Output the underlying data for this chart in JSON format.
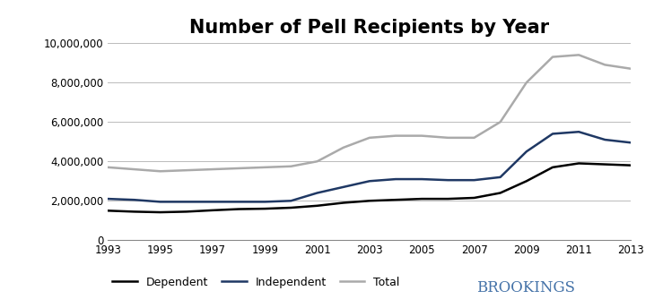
{
  "title": "Number of Pell Recipients by Year",
  "years": [
    1993,
    1994,
    1995,
    1996,
    1997,
    1998,
    1999,
    2000,
    2001,
    2002,
    2003,
    2004,
    2005,
    2006,
    2007,
    2008,
    2009,
    2010,
    2011,
    2012,
    2013
  ],
  "dependent": [
    1500000,
    1450000,
    1420000,
    1450000,
    1520000,
    1580000,
    1600000,
    1650000,
    1750000,
    1900000,
    2000000,
    2050000,
    2100000,
    2100000,
    2150000,
    2400000,
    3000000,
    3700000,
    3900000,
    3850000,
    3800000
  ],
  "independent": [
    2100000,
    2050000,
    1950000,
    1950000,
    1950000,
    1950000,
    1950000,
    2000000,
    2400000,
    2700000,
    3000000,
    3100000,
    3100000,
    3050000,
    3050000,
    3200000,
    4500000,
    5400000,
    5500000,
    5100000,
    4950000
  ],
  "total": [
    3700000,
    3600000,
    3500000,
    3550000,
    3600000,
    3650000,
    3700000,
    3750000,
    4000000,
    4700000,
    5200000,
    5300000,
    5300000,
    5200000,
    5200000,
    6000000,
    8000000,
    9300000,
    9400000,
    8900000,
    8700000
  ],
  "ylim": [
    0,
    10000000
  ],
  "yticks": [
    0,
    2000000,
    4000000,
    6000000,
    8000000,
    10000000
  ],
  "line_colors": {
    "dependent": "#000000",
    "independent": "#1f3864",
    "total": "#aaaaaa"
  },
  "line_widths": {
    "dependent": 1.8,
    "independent": 1.8,
    "total": 1.8
  },
  "legend_labels": [
    "Dependent",
    "Independent",
    "Total"
  ],
  "brookings_color": "#4472a8",
  "background_color": "#ffffff",
  "grid_color": "#bbbbbb",
  "title_fontsize": 15,
  "tick_fontsize": 8.5,
  "legend_fontsize": 9
}
